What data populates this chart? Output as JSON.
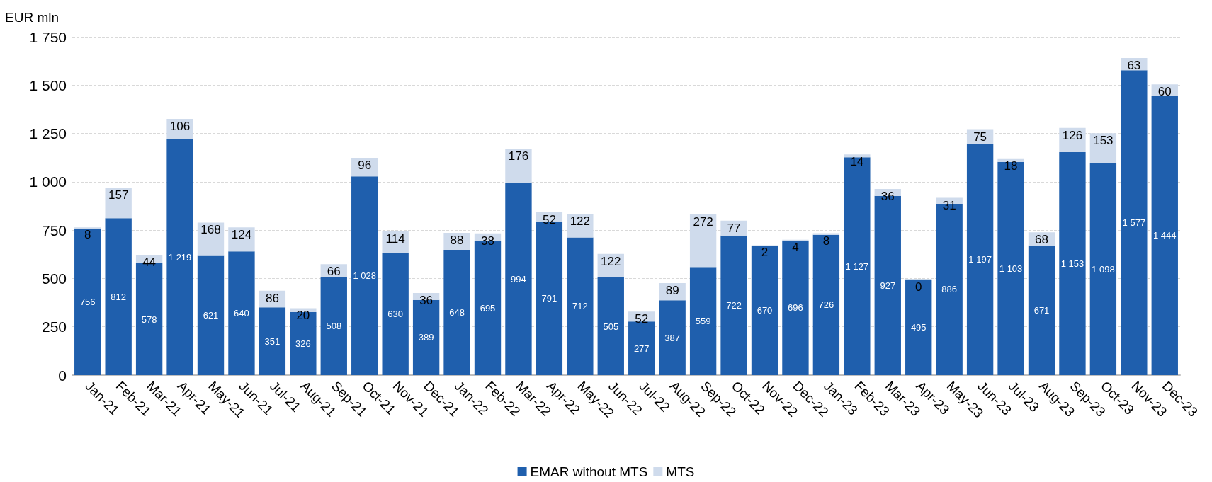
{
  "chart_data": {
    "type": "bar",
    "stacked": true,
    "ylabel": "EUR mln",
    "categories": [
      "Jan-21",
      "Feb-21",
      "Mar-21",
      "Apr-21",
      "May-21",
      "Jun-21",
      "Jul-21",
      "Aug-21",
      "Sep-21",
      "Oct-21",
      "Nov-21",
      "Dec-21",
      "Jan-22",
      "Feb-22",
      "Mar-22",
      "Apr-22",
      "May-22",
      "Jun-22",
      "Jul-22",
      "Aug-22",
      "Sep-22",
      "Oct-22",
      "Nov-22",
      "Dec-22",
      "Jan-23",
      "Feb-23",
      "Mar-23",
      "Apr-23",
      "May-23",
      "Jun-23",
      "Jul-23",
      "Aug-23",
      "Sep-23",
      "Oct-23",
      "Nov-23",
      "Dec-23"
    ],
    "series": [
      {
        "name": "EMAR without MTS",
        "color": "#1f5fad",
        "values": [
          756,
          812,
          578,
          1219,
          621,
          640,
          351,
          326,
          508,
          1028,
          630,
          389,
          648,
          695,
          994,
          791,
          712,
          505,
          277,
          387,
          559,
          722,
          670,
          696,
          726,
          1127,
          927,
          495,
          886,
          1197,
          1103,
          671,
          1153,
          1098,
          1577,
          1444
        ]
      },
      {
        "name": "MTS",
        "color": "#cfdbec",
        "values": [
          8,
          157,
          44,
          106,
          168,
          124,
          86,
          20,
          66,
          96,
          114,
          36,
          88,
          38,
          176,
          52,
          122,
          122,
          52,
          89,
          272,
          77,
          2,
          4,
          8,
          14,
          36,
          0,
          31,
          75,
          18,
          68,
          126,
          153,
          63,
          60
        ]
      }
    ],
    "ylim": [
      0,
      1750
    ],
    "yticks": [
      0,
      250,
      500,
      750,
      {
        "value": 1000,
        "label": "1 000"
      },
      {
        "value": 1250,
        "label": "1 250"
      },
      {
        "value": 1500,
        "label": "1 500"
      },
      {
        "value": 1750,
        "label": "1 750"
      }
    ],
    "grid": "y",
    "legend": "bottom",
    "data_labels": true
  }
}
